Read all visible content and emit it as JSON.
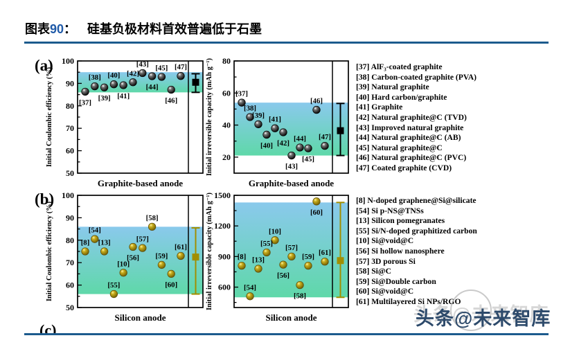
{
  "caption": {
    "prefix": "图表",
    "number": "90",
    "colon": "：",
    "title": "硅基负极材料首效普遍低于石墨"
  },
  "panel_labels": {
    "a": "(a)",
    "b": "(b)",
    "c_partial": "(c)"
  },
  "colors": {
    "rule": "#1c5b8d",
    "caption_number": "#1f5aa8",
    "band_top": "#8ac9ec",
    "band_bottom": "#5fd8a9",
    "black_marker": "#000000",
    "olive_marker": "#a18e00",
    "watermark": "#2d4a6b"
  },
  "chart_data": [
    {
      "id": "a_left",
      "type": "scatter",
      "panel": "(a)",
      "ylabel": "Initial Coulombic efficiency (%)",
      "xlabel": "Graphite-based anode",
      "ylim": [
        50,
        100
      ],
      "yticks": [
        50,
        60,
        70,
        80,
        90,
        100
      ],
      "minor_step": 5,
      "band": [
        86,
        95
      ],
      "marker": "black",
      "points": [
        {
          "ref": "[37]",
          "y": 86.3,
          "label": "below"
        },
        {
          "ref": "[38]",
          "y": 88.7,
          "label": "above"
        },
        {
          "ref": "[39]",
          "y": 88.2,
          "label": "below"
        },
        {
          "ref": "[40]",
          "y": 89.6,
          "label": "above"
        },
        {
          "ref": "[41]",
          "y": 89.2,
          "label": "below"
        },
        {
          "ref": "[42]",
          "y": 90.5,
          "label": "above"
        },
        {
          "ref": "[43]",
          "y": 94.6,
          "label": "above"
        },
        {
          "ref": "[44]",
          "y": 93.2,
          "label": "below"
        },
        {
          "ref": "[45]",
          "y": 92.9,
          "label": "above"
        },
        {
          "ref": "[46]",
          "y": 87.2,
          "label": "below"
        },
        {
          "ref": "[47]",
          "y": 93.3,
          "label": "above"
        }
      ],
      "summary": {
        "y": 90.5,
        "lo": 86.0,
        "hi": 94.3
      }
    },
    {
      "id": "a_right",
      "type": "scatter",
      "panel": "(a)",
      "ylabel": "Initial irreversible capacity (mAh g⁻¹)",
      "xlabel": "Graphite-based anode",
      "ylim": [
        10,
        80
      ],
      "yticks": [
        20,
        40,
        60,
        80
      ],
      "minor_step": 10,
      "band": [
        21,
        54
      ],
      "marker": "black",
      "points": [
        {
          "ref": "[37]",
          "y": 54,
          "label": "above"
        },
        {
          "ref": "[38]",
          "y": 45,
          "label": "above"
        },
        {
          "ref": "[39]",
          "y": 40.5,
          "label": "above"
        },
        {
          "ref": "[40]",
          "y": 34,
          "label": "below"
        },
        {
          "ref": "[41]",
          "y": 38,
          "label": "above"
        },
        {
          "ref": "[42]",
          "y": 35.5,
          "label": "below"
        },
        {
          "ref": "[43]",
          "y": 21,
          "label": "below"
        },
        {
          "ref": "[44]",
          "y": 26,
          "label": "above"
        },
        {
          "ref": "[45]",
          "y": 25.5,
          "label": "below"
        },
        {
          "ref": "[46]",
          "y": 49.5,
          "label": "above"
        },
        {
          "ref": "[47]",
          "y": 27,
          "label": "above"
        }
      ],
      "summary": {
        "y": 36.5,
        "lo": 21,
        "hi": 53.5
      }
    },
    {
      "id": "b_left",
      "type": "scatter",
      "panel": "(b)",
      "ylabel": "Initial Coulombic efficiency (%)",
      "xlabel": "Silicon anode",
      "ylim": [
        50,
        100
      ],
      "yticks": [
        50,
        60,
        70,
        80,
        90,
        100
      ],
      "minor_step": 5,
      "band": [
        56,
        86
      ],
      "marker": "olive",
      "points": [
        {
          "ref": "[8]",
          "y": 75,
          "label": "above"
        },
        {
          "ref": "[54]",
          "y": 80.5,
          "label": "above"
        },
        {
          "ref": "[13]",
          "y": 75,
          "label": "above"
        },
        {
          "ref": "[55]",
          "y": 56,
          "label": "above"
        },
        {
          "ref": "[10]",
          "y": 65.5,
          "label": "above"
        },
        {
          "ref": "[56]",
          "y": 77,
          "label": "below"
        },
        {
          "ref": "[57]",
          "y": 76.5,
          "label": "above"
        },
        {
          "ref": "[58]",
          "y": 86,
          "label": "above"
        },
        {
          "ref": "[59]",
          "y": 69,
          "label": "above"
        },
        {
          "ref": "[60]",
          "y": 65,
          "label": "below"
        },
        {
          "ref": "[61]",
          "y": 73,
          "label": "above"
        }
      ],
      "summary": {
        "y": 72.5,
        "lo": 56,
        "hi": 85.5
      }
    },
    {
      "id": "b_right",
      "type": "scatter",
      "panel": "(b)",
      "ylabel": "Initial irreversible capacity (mAh g⁻¹)",
      "xlabel": "Silicon anode",
      "ylim": [
        400,
        1500
      ],
      "yticks": [
        600,
        900,
        1200,
        1500
      ],
      "minor_step": 150,
      "band": [
        500,
        1430
      ],
      "marker": "olive",
      "points": [
        {
          "ref": "[8]",
          "y": 810,
          "label": "above"
        },
        {
          "ref": "[54]",
          "y": 510,
          "label": "above"
        },
        {
          "ref": "[13]",
          "y": 780,
          "label": "above"
        },
        {
          "ref": "[55]",
          "y": 940,
          "label": "above"
        },
        {
          "ref": "[10]",
          "y": 1060,
          "label": "above"
        },
        {
          "ref": "[56]",
          "y": 820,
          "label": "below"
        },
        {
          "ref": "[57]",
          "y": 900,
          "label": "above"
        },
        {
          "ref": "[58]",
          "y": 620,
          "label": "below"
        },
        {
          "ref": "[59]",
          "y": 810,
          "label": "above"
        },
        {
          "ref": "[60]",
          "y": 1440,
          "label": "below"
        },
        {
          "ref": "[61]",
          "y": 850,
          "label": "above"
        }
      ],
      "summary": {
        "y": 860,
        "lo": 500,
        "hi": 1430
      }
    }
  ],
  "legends": {
    "a": [
      {
        "ref": "[37]",
        "name": "AlF₃-coated graphite"
      },
      {
        "ref": "[38]",
        "name": "Carbon-coated graphite (PVA)"
      },
      {
        "ref": "[39]",
        "name": "Natural graphite"
      },
      {
        "ref": "[40]",
        "name": "Hard carbon/graphite"
      },
      {
        "ref": "[41]",
        "name": "Graphite"
      },
      {
        "ref": "[42]",
        "name": "Natural graphite@C (TVD)"
      },
      {
        "ref": "[43]",
        "name": "Improved natural graphite"
      },
      {
        "ref": "[44]",
        "name": "Natural graphite@C (AB)"
      },
      {
        "ref": "[45]",
        "name": "Natural graphite@C"
      },
      {
        "ref": "[46]",
        "name": "Natural graphite@C (PVC)"
      },
      {
        "ref": "[47]",
        "name": "Coated graphite (CVD)"
      }
    ],
    "b": [
      {
        "ref": "[8]",
        "name": "N-doped graphene@Si@silicate"
      },
      {
        "ref": "[54]",
        "name": "Si p-NS@TNSs"
      },
      {
        "ref": "[13]",
        "name": "Silicon pomegranates"
      },
      {
        "ref": "[55]",
        "name": "Si/N-doped graphitized carbon"
      },
      {
        "ref": "[10]",
        "name": "Si@void@C"
      },
      {
        "ref": "[56]",
        "name": "Si hollow nanosphere"
      },
      {
        "ref": "[57]",
        "name": "3D porous Si"
      },
      {
        "ref": "[58]",
        "name": "Si@C"
      },
      {
        "ref": "[59]",
        "name": "Si@Double carbon"
      },
      {
        "ref": "[60]",
        "name": "Si@void@C"
      },
      {
        "ref": "[61]",
        "name": "Multilayered Si NPs/RGO"
      }
    ]
  },
  "watermark": {
    "text": "头条@未来智库"
  }
}
